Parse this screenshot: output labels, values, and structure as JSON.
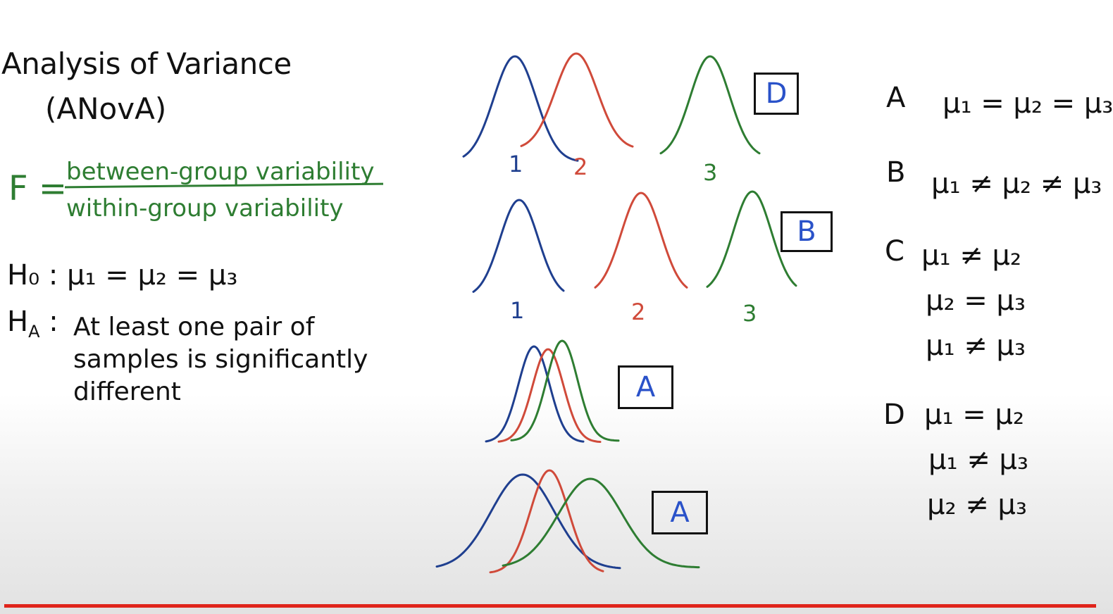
{
  "title": {
    "line1": "Analysis of Variance",
    "line2": "(ANovA)"
  },
  "formula": {
    "lhs": "F =",
    "numerator": "between-group variability",
    "denominator": "within-group variability"
  },
  "hypotheses": {
    "h0": "H₀ : μ₁ = μ₂ = μ₃",
    "ha_label": "H_A :",
    "ha_text": "At least one pair of samples is significantly different"
  },
  "curve_colors": {
    "group1": "#1f3f8f",
    "group2": "#d04a3a",
    "group3": "#2e7d32"
  },
  "diagrams": [
    {
      "answer": "D",
      "labels": [
        "1",
        "2",
        "3"
      ]
    },
    {
      "answer": "B",
      "labels": [
        "1",
        "2",
        "3"
      ]
    },
    {
      "answer": "A",
      "labels": []
    },
    {
      "answer": "A",
      "labels": []
    }
  ],
  "options": [
    {
      "letter": "A",
      "lines": [
        "μ₁ = μ₂ = μ₃"
      ]
    },
    {
      "letter": "B",
      "lines": [
        "μ₁ ≠ μ₂ ≠ μ₃"
      ]
    },
    {
      "letter": "C",
      "lines": [
        "μ₁ ≠ μ₂",
        "μ₂ = μ₃",
        "μ₁ ≠ μ₃"
      ]
    },
    {
      "letter": "D",
      "lines": [
        "μ₁ = μ₂",
        "μ₁ ≠ μ₃",
        "μ₂ ≠ μ₃"
      ]
    }
  ]
}
